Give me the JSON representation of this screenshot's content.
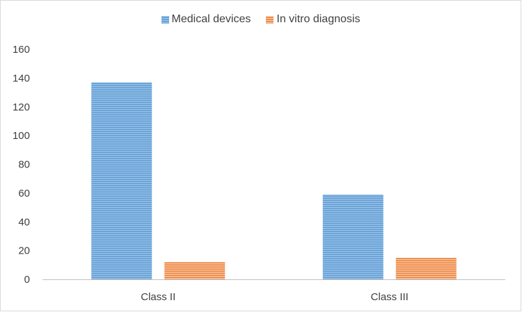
{
  "chart_data": {
    "type": "bar",
    "categories": [
      "Class II",
      "Class III"
    ],
    "series": [
      {
        "name": "Medical devices",
        "values": [
          137,
          59
        ],
        "color": "#5b9bd5"
      },
      {
        "name": "In vitro diagnosis",
        "values": [
          12,
          15
        ],
        "color": "#ed7d31"
      }
    ],
    "ylim": [
      0,
      160
    ],
    "yticks": [
      "0",
      "20",
      "40",
      "60",
      "80",
      "100",
      "120",
      "140",
      "160"
    ],
    "grid": false,
    "legend_position": "top-center",
    "bar_fill": "horizontal-stripes"
  }
}
